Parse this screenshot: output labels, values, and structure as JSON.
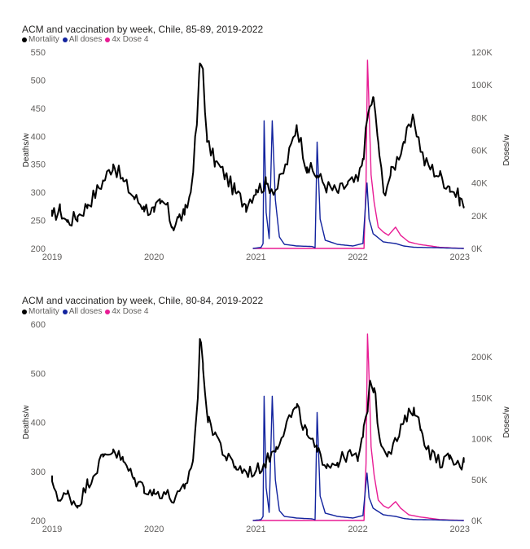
{
  "chart_data": [
    {
      "type": "line",
      "title": "ACM and vaccination by week, Chile, 85-89, 2019-2022",
      "legend": [
        "Mortality",
        "All doses",
        "4x Dose 4"
      ],
      "legend_position": "top-left",
      "ylabel": "Deaths/w",
      "y2label": "Doses/w",
      "ylim": [
        200,
        550
      ],
      "y2lim": [
        0,
        120000
      ],
      "yticks": [
        200,
        250,
        300,
        350,
        400,
        450,
        500,
        550
      ],
      "yticklabels": [
        "200",
        "250",
        "300",
        "350",
        "400",
        "450",
        "500",
        "550"
      ],
      "y2ticks": [
        0,
        20000,
        40000,
        60000,
        80000,
        100000,
        120000
      ],
      "y2ticklabels": [
        "0K",
        "20K",
        "40K",
        "60K",
        "80K",
        "100K",
        "120K"
      ],
      "xlim": [
        2019,
        2023.05
      ],
      "xticks": [
        2019,
        2020,
        2021,
        2022,
        2023
      ],
      "xticklabels": [
        "2019",
        "2020",
        "2021",
        "2022",
        "2023"
      ],
      "grid": false,
      "series": [
        {
          "name": "Mortality",
          "axis": "left",
          "color": "#000000",
          "anchors": [
            [
              2019.0,
              258
            ],
            [
              2019.08,
              268
            ],
            [
              2019.15,
              247
            ],
            [
              2019.25,
              257
            ],
            [
              2019.35,
              278
            ],
            [
              2019.5,
              320
            ],
            [
              2019.6,
              350
            ],
            [
              2019.7,
              320
            ],
            [
              2019.8,
              292
            ],
            [
              2019.9,
              275
            ],
            [
              2020.0,
              265
            ],
            [
              2020.06,
              280
            ],
            [
              2020.12,
              278
            ],
            [
              2020.18,
              238
            ],
            [
              2020.24,
              255
            ],
            [
              2020.3,
              260
            ],
            [
              2020.36,
              300
            ],
            [
              2020.42,
              420
            ],
            [
              2020.45,
              530
            ],
            [
              2020.48,
              520
            ],
            [
              2020.52,
              390
            ],
            [
              2020.6,
              355
            ],
            [
              2020.7,
              330
            ],
            [
              2020.8,
              300
            ],
            [
              2020.9,
              278
            ],
            [
              2021.0,
              305
            ],
            [
              2021.1,
              315
            ],
            [
              2021.2,
              305
            ],
            [
              2021.3,
              350
            ],
            [
              2021.4,
              420
            ],
            [
              2021.5,
              345
            ],
            [
              2021.6,
              330
            ],
            [
              2021.7,
              310
            ],
            [
              2021.8,
              300
            ],
            [
              2021.9,
              315
            ],
            [
              2022.0,
              320
            ],
            [
              2022.05,
              360
            ],
            [
              2022.1,
              440
            ],
            [
              2022.15,
              470
            ],
            [
              2022.2,
              390
            ],
            [
              2022.25,
              300
            ],
            [
              2022.32,
              330
            ],
            [
              2022.45,
              390
            ],
            [
              2022.55,
              430
            ],
            [
              2022.65,
              355
            ],
            [
              2022.8,
              330
            ],
            [
              2022.9,
              310
            ],
            [
              2023.0,
              290
            ],
            [
              2023.04,
              275
            ]
          ]
        },
        {
          "name": "All doses",
          "axis": "right",
          "color": "#12239e",
          "anchors": [
            [
              2020.97,
              0
            ],
            [
              2021.05,
              600
            ],
            [
              2021.07,
              3000
            ],
            [
              2021.08,
              78000
            ],
            [
              2021.1,
              22000
            ],
            [
              2021.13,
              6000
            ],
            [
              2021.16,
              78000
            ],
            [
              2021.19,
              30000
            ],
            [
              2021.23,
              7000
            ],
            [
              2021.28,
              2500
            ],
            [
              2021.4,
              1500
            ],
            [
              2021.55,
              1200
            ],
            [
              2021.58,
              500
            ],
            [
              2021.6,
              65000
            ],
            [
              2021.63,
              18000
            ],
            [
              2021.68,
              5000
            ],
            [
              2021.8,
              2500
            ],
            [
              2021.95,
              1500
            ],
            [
              2022.05,
              3000
            ],
            [
              2022.09,
              40000
            ],
            [
              2022.11,
              18000
            ],
            [
              2022.15,
              9000
            ],
            [
              2022.25,
              4000
            ],
            [
              2022.37,
              3000
            ],
            [
              2022.45,
              1500
            ],
            [
              2022.55,
              700
            ],
            [
              2022.75,
              500
            ],
            [
              2022.9,
              200
            ],
            [
              2023.04,
              0
            ]
          ]
        },
        {
          "name": "4x Dose 4",
          "axis": "right",
          "color": "#e81b94",
          "anchors": [
            [
              2020.97,
              0
            ],
            [
              2022.06,
              0
            ],
            [
              2022.08,
              40000
            ],
            [
              2022.095,
              115000
            ],
            [
              2022.11,
              85000
            ],
            [
              2022.13,
              45000
            ],
            [
              2022.16,
              28000
            ],
            [
              2022.2,
              13000
            ],
            [
              2022.25,
              10000
            ],
            [
              2022.3,
              8000
            ],
            [
              2022.37,
              13000
            ],
            [
              2022.42,
              8000
            ],
            [
              2022.5,
              4000
            ],
            [
              2022.6,
              2500
            ],
            [
              2022.8,
              700
            ],
            [
              2023.04,
              0
            ]
          ]
        }
      ]
    },
    {
      "type": "line",
      "title": "ACM and vaccination by week, Chile, 80-84, 2019-2022",
      "legend": [
        "Mortality",
        "All doses",
        "4x Dose 4"
      ],
      "legend_position": "top-left",
      "ylabel": "Deaths/w",
      "y2label": "Doses/w",
      "ylim": [
        200,
        600
      ],
      "y2lim": [
        0,
        240000
      ],
      "yticks": [
        200,
        300,
        400,
        500,
        600
      ],
      "yticklabels": [
        "200",
        "300",
        "400",
        "500",
        "600"
      ],
      "y2ticks": [
        0,
        50000,
        100000,
        150000,
        200000
      ],
      "y2ticklabels": [
        "0K",
        "50K",
        "100K",
        "150K",
        "200K"
      ],
      "xlim": [
        2019,
        2023.05
      ],
      "xticks": [
        2019,
        2020,
        2021,
        2022,
        2023
      ],
      "xticklabels": [
        "2019",
        "2020",
        "2021",
        "2022",
        "2023"
      ],
      "grid": false,
      "series": [
        {
          "name": "Mortality",
          "axis": "left",
          "color": "#000000",
          "anchors": [
            [
              2019.0,
              280
            ],
            [
              2019.08,
              240
            ],
            [
              2019.15,
              255
            ],
            [
              2019.25,
              230
            ],
            [
              2019.35,
              275
            ],
            [
              2019.5,
              330
            ],
            [
              2019.6,
              345
            ],
            [
              2019.7,
              320
            ],
            [
              2019.8,
              285
            ],
            [
              2019.9,
              268
            ],
            [
              2020.0,
              255
            ],
            [
              2020.1,
              258
            ],
            [
              2020.2,
              240
            ],
            [
              2020.3,
              265
            ],
            [
              2020.38,
              320
            ],
            [
              2020.43,
              450
            ],
            [
              2020.45,
              570
            ],
            [
              2020.48,
              520
            ],
            [
              2020.53,
              400
            ],
            [
              2020.6,
              380
            ],
            [
              2020.7,
              330
            ],
            [
              2020.8,
              310
            ],
            [
              2020.9,
              300
            ],
            [
              2021.0,
              300
            ],
            [
              2021.1,
              320
            ],
            [
              2021.2,
              350
            ],
            [
              2021.3,
              400
            ],
            [
              2021.4,
              430
            ],
            [
              2021.5,
              375
            ],
            [
              2021.6,
              340
            ],
            [
              2021.7,
              315
            ],
            [
              2021.8,
              318
            ],
            [
              2021.9,
              335
            ],
            [
              2022.0,
              325
            ],
            [
              2022.05,
              370
            ],
            [
              2022.1,
              440
            ],
            [
              2022.12,
              485
            ],
            [
              2022.16,
              470
            ],
            [
              2022.22,
              360
            ],
            [
              2022.3,
              340
            ],
            [
              2022.4,
              370
            ],
            [
              2022.45,
              400
            ],
            [
              2022.55,
              430
            ],
            [
              2022.62,
              385
            ],
            [
              2022.7,
              340
            ],
            [
              2022.8,
              320
            ],
            [
              2022.9,
              325
            ],
            [
              2023.0,
              310
            ],
            [
              2023.04,
              318
            ]
          ]
        },
        {
          "name": "All doses",
          "axis": "right",
          "color": "#12239e",
          "anchors": [
            [
              2020.97,
              0
            ],
            [
              2021.05,
              1000
            ],
            [
              2021.07,
              5000
            ],
            [
              2021.08,
              152000
            ],
            [
              2021.1,
              40000
            ],
            [
              2021.13,
              10000
            ],
            [
              2021.16,
              152000
            ],
            [
              2021.19,
              50000
            ],
            [
              2021.23,
              12000
            ],
            [
              2021.28,
              5000
            ],
            [
              2021.4,
              3000
            ],
            [
              2021.55,
              2000
            ],
            [
              2021.58,
              1000
            ],
            [
              2021.6,
              132000
            ],
            [
              2021.63,
              30000
            ],
            [
              2021.68,
              9000
            ],
            [
              2021.8,
              5000
            ],
            [
              2021.95,
              3000
            ],
            [
              2022.05,
              6000
            ],
            [
              2022.09,
              58000
            ],
            [
              2022.11,
              28000
            ],
            [
              2022.15,
              15000
            ],
            [
              2022.25,
              7000
            ],
            [
              2022.37,
              5000
            ],
            [
              2022.45,
              2500
            ],
            [
              2022.55,
              1200
            ],
            [
              2022.75,
              800
            ],
            [
              2022.9,
              300
            ],
            [
              2023.04,
              0
            ]
          ]
        },
        {
          "name": "4x Dose 4",
          "axis": "right",
          "color": "#e81b94",
          "anchors": [
            [
              2020.97,
              0
            ],
            [
              2022.06,
              0
            ],
            [
              2022.08,
              70000
            ],
            [
              2022.095,
              228000
            ],
            [
              2022.11,
              175000
            ],
            [
              2022.13,
              90000
            ],
            [
              2022.16,
              55000
            ],
            [
              2022.2,
              25000
            ],
            [
              2022.25,
              18000
            ],
            [
              2022.3,
              15000
            ],
            [
              2022.37,
              23000
            ],
            [
              2022.42,
              15000
            ],
            [
              2022.5,
              7000
            ],
            [
              2022.6,
              4500
            ],
            [
              2022.8,
              1200
            ],
            [
              2023.04,
              0
            ]
          ]
        }
      ]
    }
  ]
}
